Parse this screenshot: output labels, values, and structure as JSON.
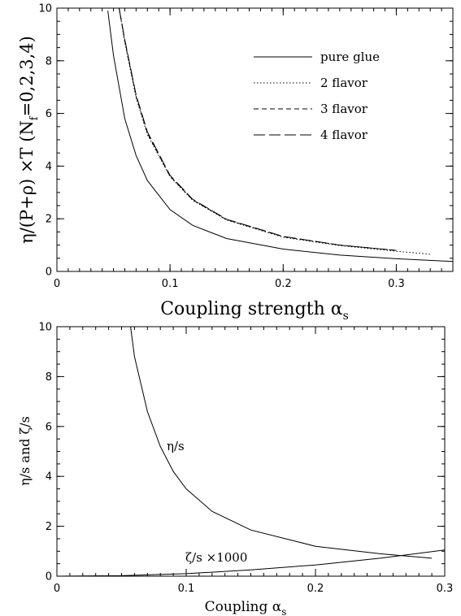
{
  "chart_data": [
    {
      "type": "line",
      "xlabel": "Coupling strength α",
      "xlabel_sub": "s",
      "ylabel": "η/(P+ρ) ×T (N=0,2,3,4)",
      "ylabel_parts": {
        "pre": "η/(P+ρ) ×T (N",
        "sub": "f",
        "post": "=0,2,3,4)"
      },
      "xlim": [
        0,
        0.35
      ],
      "ylim": [
        0,
        10
      ],
      "xticks": [
        "0",
        "0.1",
        "0.2",
        "0.3"
      ],
      "yticks": [
        "0",
        "2",
        "4",
        "6",
        "8",
        "10"
      ],
      "legend_position": "top-right",
      "series": [
        {
          "name": "pure glue",
          "style": "solid",
          "x": [
            0.045,
            0.05,
            0.06,
            0.07,
            0.08,
            0.1,
            0.12,
            0.15,
            0.2,
            0.25,
            0.3,
            0.35
          ],
          "y": [
            9.9,
            8.2,
            5.8,
            4.4,
            3.45,
            2.35,
            1.75,
            1.25,
            0.85,
            0.62,
            0.48,
            0.38
          ]
        },
        {
          "name": "2 flavor",
          "style": "dotted",
          "x": [
            0.055,
            0.06,
            0.07,
            0.08,
            0.1,
            0.12,
            0.15,
            0.2,
            0.25,
            0.3,
            0.33
          ],
          "y": [
            10.0,
            8.7,
            6.6,
            5.2,
            3.6,
            2.7,
            1.95,
            1.3,
            0.98,
            0.77,
            0.65
          ]
        },
        {
          "name": "3 flavor",
          "style": "dashed",
          "x": [
            0.055,
            0.06,
            0.07,
            0.08,
            0.1,
            0.12,
            0.15,
            0.2,
            0.25,
            0.3
          ],
          "y": [
            10.0,
            8.75,
            6.65,
            5.25,
            3.62,
            2.72,
            1.97,
            1.32,
            1.0,
            0.8
          ]
        },
        {
          "name": "4 flavor",
          "style": "longdash",
          "x": [
            0.055,
            0.06,
            0.07,
            0.08,
            0.1,
            0.12,
            0.15,
            0.2,
            0.25,
            0.3
          ],
          "y": [
            10.0,
            8.8,
            6.7,
            5.3,
            3.65,
            2.74,
            1.98,
            1.33,
            1.0,
            0.8
          ]
        }
      ],
      "legend": [
        "pure glue",
        "2 flavor",
        "3 flavor",
        "4 flavor"
      ]
    },
    {
      "type": "line",
      "xlabel": "Coupling α",
      "xlabel_sub": "s",
      "ylabel": "η/s and ζ/s",
      "xlim": [
        0,
        0.3
      ],
      "ylim": [
        0,
        10
      ],
      "xticks": [
        "0",
        "0.1",
        "0.2",
        "0.3"
      ],
      "yticks": [
        "0",
        "2",
        "4",
        "6",
        "8",
        "10"
      ],
      "annotations": [
        "η/s",
        "ζ/s ×1000"
      ],
      "series": [
        {
          "style": "solid",
          "x": [
            0.057,
            0.06,
            0.07,
            0.08,
            0.09,
            0.1,
            0.12,
            0.15,
            0.2,
            0.25,
            0.29
          ],
          "y": [
            10.0,
            8.8,
            6.6,
            5.2,
            4.2,
            3.5,
            2.6,
            1.85,
            1.2,
            0.9,
            0.72
          ]
        },
        {
          "style": "solid",
          "x": [
            0.0,
            0.05,
            0.1,
            0.15,
            0.2,
            0.25,
            0.3
          ],
          "y": [
            0.0,
            0.02,
            0.1,
            0.25,
            0.45,
            0.72,
            1.05
          ]
        }
      ]
    }
  ]
}
